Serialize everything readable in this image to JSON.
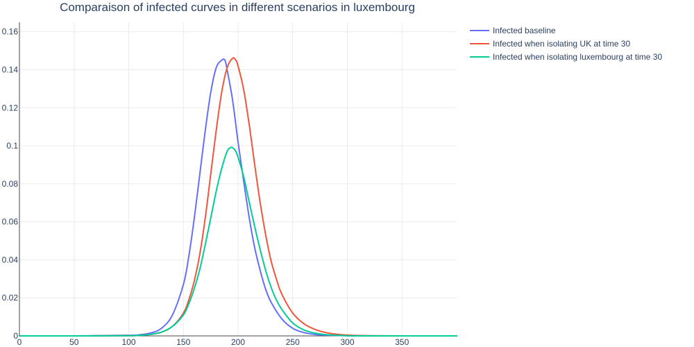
{
  "chart_data": {
    "type": "line",
    "title": "Comparaison of infected curves in different scenarios in luxembourg",
    "xlabel": "",
    "ylabel": "",
    "xlim": [
      0,
      400
    ],
    "ylim": [
      0,
      0.165
    ],
    "x_ticks": [
      0,
      50,
      100,
      150,
      200,
      250,
      300,
      350
    ],
    "x_tick_labels": [
      "0",
      "50",
      "100",
      "150",
      "200",
      "250",
      "300",
      "350"
    ],
    "y_ticks": [
      0,
      0.02,
      0.04,
      0.06,
      0.08,
      0.1,
      0.12,
      0.14,
      0.16
    ],
    "y_tick_labels": [
      "0",
      "0.02",
      "0.04",
      "0.06",
      "0.08",
      "0.1",
      "0.12",
      "0.14",
      "0.16"
    ],
    "grid": true,
    "legend_position": "top-right outside",
    "series": [
      {
        "name": "Infected baseline",
        "color": "#636efa",
        "x": [
          0,
          50,
          100,
          110,
          120,
          130,
          140,
          150,
          155,
          160,
          165,
          170,
          175,
          180,
          185,
          188,
          190,
          195,
          200,
          205,
          210,
          215,
          220,
          225,
          230,
          240,
          250,
          260,
          270,
          280,
          300,
          320,
          350,
          400
        ],
        "y": [
          0,
          0,
          0.0003,
          0.0006,
          0.0015,
          0.004,
          0.011,
          0.027,
          0.042,
          0.062,
          0.085,
          0.108,
          0.128,
          0.141,
          0.145,
          0.145,
          0.14,
          0.124,
          0.102,
          0.082,
          0.063,
          0.047,
          0.035,
          0.025,
          0.018,
          0.009,
          0.004,
          0.0018,
          0.0008,
          0.0004,
          0.0001,
          0,
          0,
          0
        ]
      },
      {
        "name": "Infected when isolating UK at time 30",
        "color": "#ef553b",
        "x": [
          0,
          50,
          100,
          110,
          120,
          130,
          140,
          150,
          155,
          160,
          165,
          170,
          175,
          180,
          185,
          190,
          195,
          198,
          200,
          205,
          210,
          215,
          220,
          225,
          230,
          235,
          240,
          250,
          260,
          270,
          280,
          290,
          300,
          320,
          350,
          400
        ],
        "y": [
          0,
          0,
          0.0001,
          0.0003,
          0.0008,
          0.002,
          0.005,
          0.012,
          0.019,
          0.029,
          0.043,
          0.062,
          0.085,
          0.108,
          0.128,
          0.141,
          0.146,
          0.145,
          0.142,
          0.13,
          0.112,
          0.091,
          0.071,
          0.054,
          0.04,
          0.03,
          0.022,
          0.012,
          0.0065,
          0.0035,
          0.0018,
          0.0009,
          0.0004,
          0.0001,
          0,
          0
        ]
      },
      {
        "name": "Infected when isolating luxembourg at time 30",
        "color": "#00cc96",
        "x": [
          0,
          50,
          100,
          110,
          120,
          130,
          140,
          150,
          155,
          160,
          165,
          170,
          175,
          180,
          185,
          190,
          193,
          195,
          198,
          200,
          205,
          210,
          215,
          220,
          225,
          230,
          235,
          240,
          250,
          260,
          270,
          280,
          300,
          320,
          350,
          400
        ],
        "y": [
          0,
          0,
          0.0001,
          0.0003,
          0.0008,
          0.002,
          0.005,
          0.011,
          0.017,
          0.025,
          0.035,
          0.048,
          0.062,
          0.076,
          0.088,
          0.097,
          0.099,
          0.099,
          0.097,
          0.094,
          0.084,
          0.071,
          0.058,
          0.046,
          0.035,
          0.026,
          0.019,
          0.014,
          0.0068,
          0.0032,
          0.0015,
          0.0007,
          0.0001,
          0,
          0,
          0
        ]
      }
    ]
  }
}
